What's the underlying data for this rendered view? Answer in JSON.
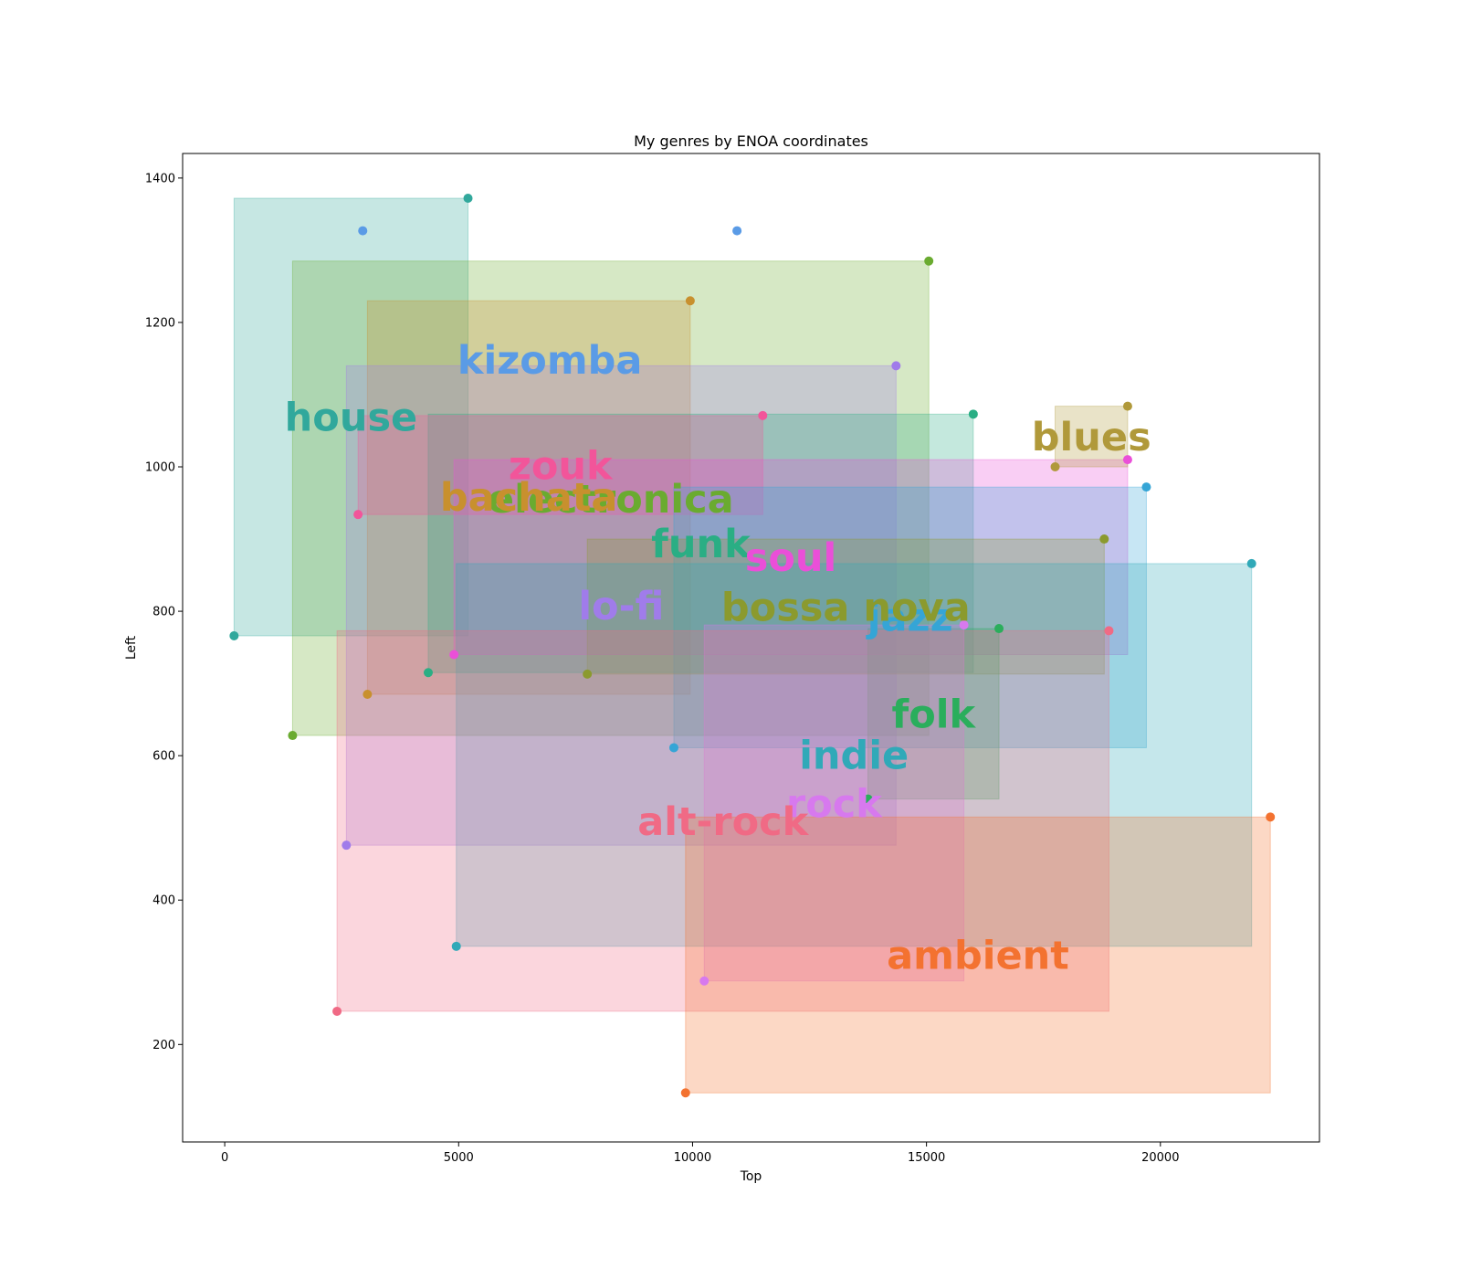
{
  "chart_data": {
    "type": "scatter",
    "title": "My genres by ENOA coordinates",
    "xlabel": "Top",
    "ylabel": "Left",
    "xlim": [
      -900,
      23400
    ],
    "ylim": [
      65,
      1434
    ],
    "xticks": [
      0,
      5000,
      10000,
      15000,
      20000
    ],
    "yticks": [
      200,
      400,
      600,
      800,
      1000,
      1200,
      1400
    ],
    "grid": false,
    "genres": [
      {
        "name": "house",
        "color": "#31a89c",
        "x0": 200,
        "x1": 5200,
        "y0": 766,
        "y1": 1372,
        "label_x": 2700,
        "label_y": 1069
      },
      {
        "name": "kizomba",
        "color": "#5a9be6",
        "x0": 2950,
        "x1": 10950,
        "y0": 1327,
        "y1": 1327,
        "label_x": 6950,
        "label_y": 1148
      },
      {
        "name": "electronica",
        "color": "#6aab30",
        "x0": 1450,
        "x1": 15050,
        "y0": 628,
        "y1": 1285,
        "label_x": 8250,
        "label_y": 956
      },
      {
        "name": "bachata",
        "color": "#c8902e",
        "x0": 3050,
        "x1": 9950,
        "y0": 685,
        "y1": 1230,
        "label_x": 6500,
        "label_y": 958
      },
      {
        "name": "lo-fi",
        "color": "#a07cea",
        "x0": 2600,
        "x1": 14350,
        "y0": 476,
        "y1": 1140,
        "label_x": 8475,
        "label_y": 808
      },
      {
        "name": "funk",
        "color": "#2aae84",
        "x0": 4350,
        "x1": 16000,
        "y0": 715,
        "y1": 1073,
        "label_x": 10175,
        "label_y": 894
      },
      {
        "name": "zouk",
        "color": "#f2559a",
        "x0": 2850,
        "x1": 11500,
        "y0": 934,
        "y1": 1071,
        "label_x": 7175,
        "label_y": 1002
      },
      {
        "name": "soul",
        "color": "#ea4fd8",
        "x0": 4900,
        "x1": 19300,
        "y0": 740,
        "y1": 1010,
        "label_x": 12100,
        "label_y": 875
      },
      {
        "name": "jazz",
        "color": "#35a5d6",
        "x0": 9600,
        "x1": 19700,
        "y0": 611,
        "y1": 972,
        "label_x": 14650,
        "label_y": 792
      },
      {
        "name": "bossa nova",
        "color": "#8b9a2e",
        "x0": 7750,
        "x1": 18800,
        "y0": 713,
        "y1": 900,
        "label_x": 13275,
        "label_y": 806
      },
      {
        "name": "blues",
        "color": "#b0993a",
        "x0": 17750,
        "x1": 19300,
        "y0": 1000,
        "y1": 1084,
        "label_x": 18525,
        "label_y": 1042
      },
      {
        "name": "indie",
        "color": "#30a9b8",
        "x0": 4950,
        "x1": 21950,
        "y0": 336,
        "y1": 866,
        "label_x": 13450,
        "label_y": 601
      },
      {
        "name": "folk",
        "color": "#2aae5c",
        "x0": 13750,
        "x1": 16550,
        "y0": 540,
        "y1": 776,
        "label_x": 15150,
        "label_y": 658
      },
      {
        "name": "rock",
        "color": "#d779ee",
        "x0": 10250,
        "x1": 15800,
        "y0": 288,
        "y1": 781,
        "label_x": 13025,
        "label_y": 534
      },
      {
        "name": "alt-rock",
        "color": "#f06a85",
        "x0": 2400,
        "x1": 18900,
        "y0": 246,
        "y1": 773,
        "label_x": 10650,
        "label_y": 509
      },
      {
        "name": "ambient",
        "color": "#f37230",
        "x0": 9850,
        "x1": 22350,
        "y0": 133,
        "y1": 515,
        "label_x": 16100,
        "label_y": 324
      }
    ]
  }
}
